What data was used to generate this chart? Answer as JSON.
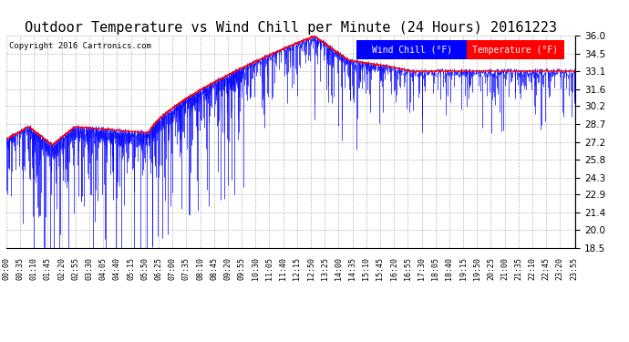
{
  "title": "Outdoor Temperature vs Wind Chill per Minute (24 Hours) 20161223",
  "copyright": "Copyright 2016 Cartronics.com",
  "legend_wind_chill": "Wind Chill (°F)",
  "legend_temperature": "Temperature (°F)",
  "yticks": [
    18.5,
    20.0,
    21.4,
    22.9,
    24.3,
    25.8,
    27.2,
    28.7,
    30.2,
    31.6,
    33.1,
    34.5,
    36.0
  ],
  "ymin": 18.5,
  "ymax": 36.0,
  "background_color": "#ffffff",
  "plot_bg_color": "#ffffff",
  "grid_color": "#aaaaaa",
  "title_fontsize": 11,
  "wind_chill_color": "#0000ff",
  "temperature_color": "#ff0000",
  "num_minutes": 1440,
  "xtick_step": 35
}
